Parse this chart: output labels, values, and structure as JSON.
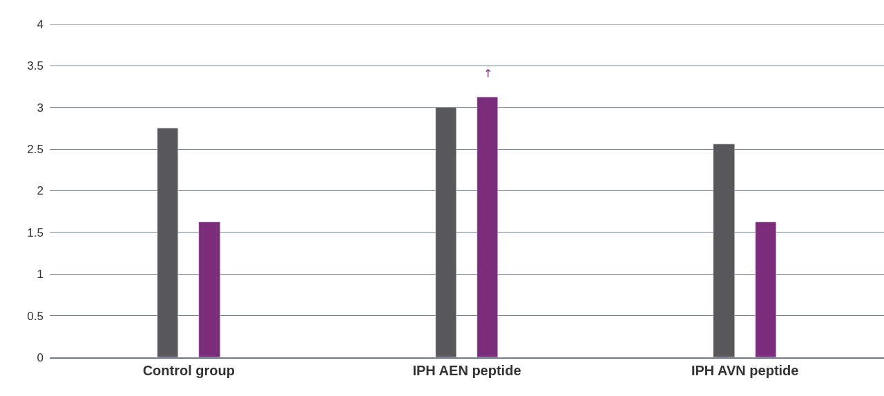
{
  "chart_data": {
    "type": "bar",
    "categories": [
      "Control group",
      "IPH AEN peptide",
      "IPH AVN peptide"
    ],
    "series": [
      {
        "color": "#58585a",
        "values": [
          2.75,
          3.0,
          2.56
        ]
      },
      {
        "color": "#7b2d7b",
        "values": [
          1.62,
          3.12,
          1.62
        ]
      }
    ],
    "ylim": [
      0,
      4
    ],
    "yticks": [
      0,
      0.5,
      1,
      1.5,
      2,
      2.5,
      3,
      3.5,
      4
    ],
    "grid": "y",
    "annotations": [
      "↑"
    ]
  }
}
